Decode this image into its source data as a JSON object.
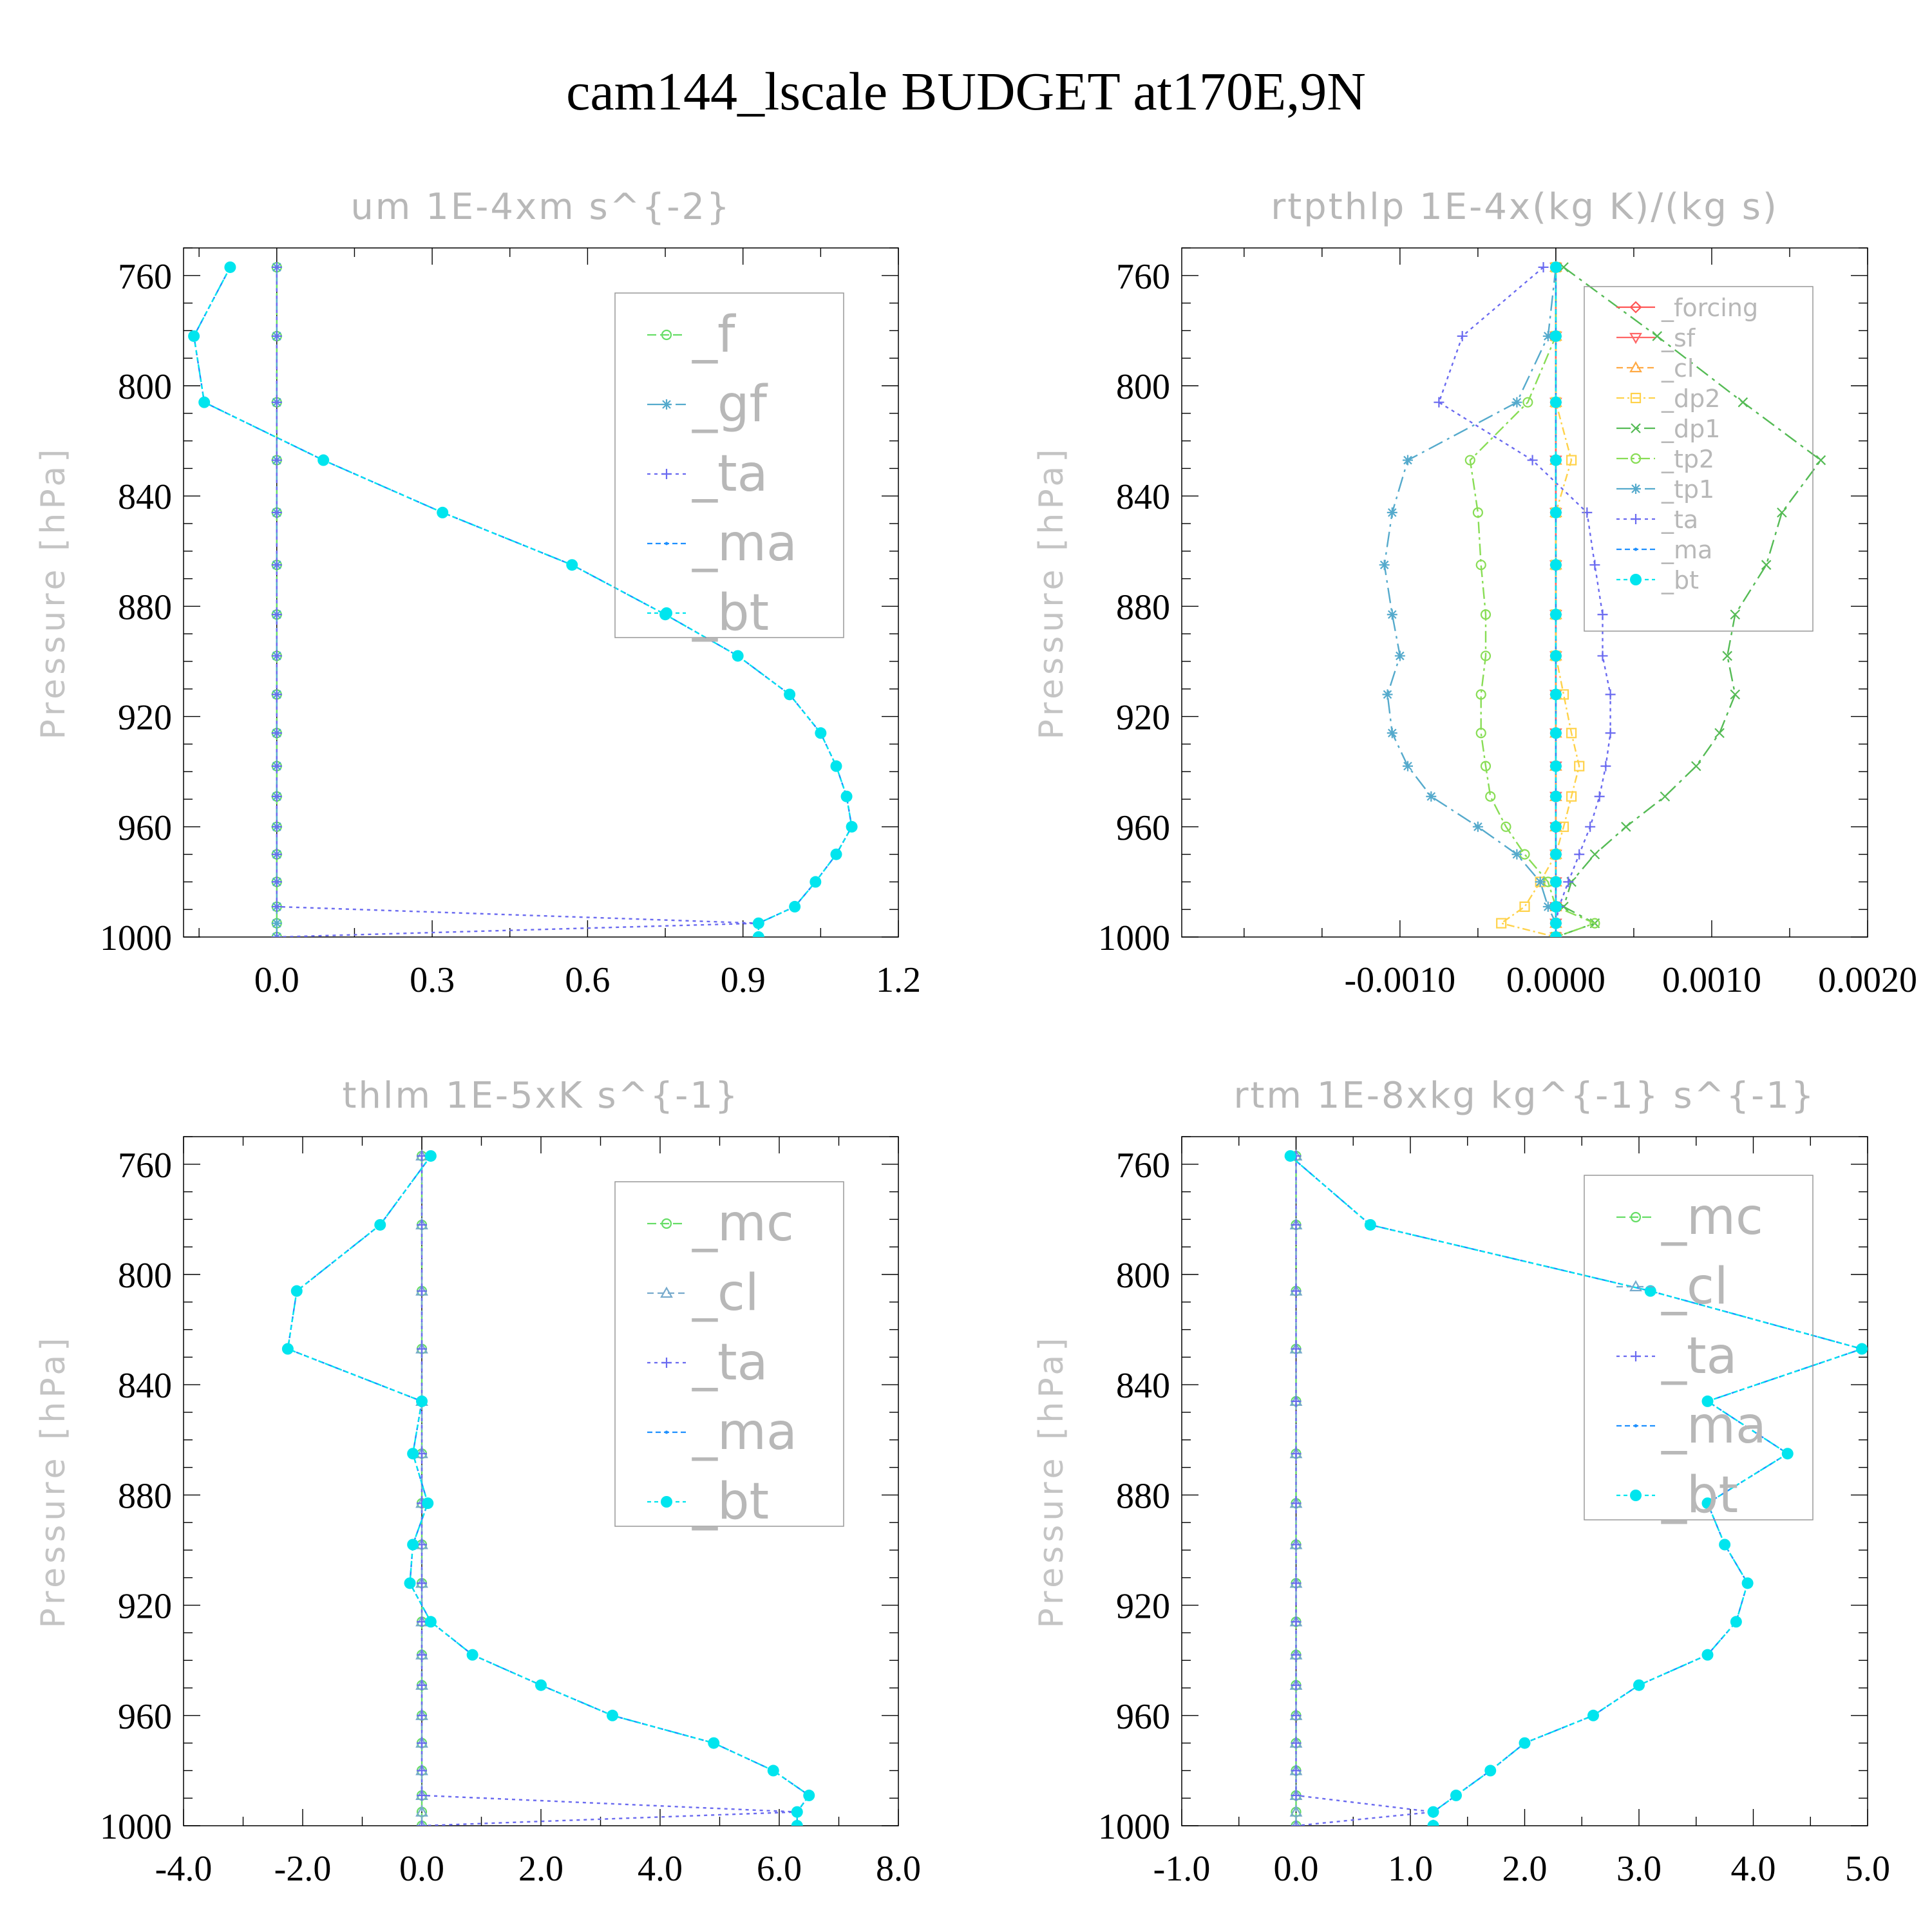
{
  "figure": {
    "title": "cam144_lscale  BUDGET at170E,9N"
  },
  "colors": {
    "_f": "#66dd66",
    "_gf": "#55aacc",
    "_ta": "#6a6af0",
    "_ma": "#1e90ff",
    "_bt": "#00e5ee",
    "_forcing": "#ff5555",
    "_sf": "#ff6666",
    "_cl": "#ffaa44",
    "_dp2": "#ffd24a",
    "_dp1": "#55bb55",
    "_tp2": "#88dd55",
    "_tp1": "#55aacc",
    "_mc": "#66dd66",
    "_cl_gray": "#77aacc"
  },
  "chart_data": [
    {
      "type": "line",
      "title": "um   1E-4xm s^{-2}",
      "ylabel": "Pressure [hPa]",
      "xlim": [
        -0.18,
        1.2
      ],
      "ylim": [
        1000,
        750
      ],
      "xticks": [
        0.0,
        0.3,
        0.6,
        0.9,
        1.2
      ],
      "xtick_labels": [
        "0.0",
        "0.3",
        "0.6",
        "0.9",
        "1.2"
      ],
      "yticks": [
        760,
        800,
        840,
        880,
        920,
        960,
        1000
      ],
      "legend": [
        "_f",
        "_gf",
        "_ta",
        "_ma",
        "_bt"
      ],
      "legend_placement": "top-right",
      "y": [
        757,
        782,
        806,
        827,
        846,
        865,
        883,
        898,
        912,
        926,
        938,
        949,
        960,
        970,
        980,
        989,
        995,
        1000
      ],
      "series": [
        {
          "name": "_f",
          "values": [
            0,
            0,
            0,
            0,
            0,
            0,
            0,
            0,
            0,
            0,
            0,
            0,
            0,
            0,
            0,
            0,
            0,
            0
          ]
        },
        {
          "name": "_gf",
          "values": [
            0,
            0,
            0,
            0,
            0,
            0,
            0,
            0,
            0,
            0,
            0,
            0,
            0,
            0,
            0,
            0,
            0,
            0
          ]
        },
        {
          "name": "_ta",
          "values": [
            0,
            0,
            0,
            0,
            0,
            0,
            0,
            0,
            0,
            0,
            0,
            0,
            0,
            0,
            0,
            0,
            0.93,
            0
          ]
        },
        {
          "name": "_ma",
          "values": [
            -0.09,
            -0.16,
            -0.14,
            0.09,
            0.32,
            0.57,
            0.75,
            0.89,
            0.99,
            1.05,
            1.08,
            1.1,
            1.11,
            1.08,
            1.04,
            1.0,
            0.93,
            0.93
          ]
        },
        {
          "name": "_bt",
          "values": [
            -0.09,
            -0.16,
            -0.14,
            0.09,
            0.32,
            0.57,
            0.75,
            0.89,
            0.99,
            1.05,
            1.08,
            1.1,
            1.11,
            1.08,
            1.04,
            1.0,
            0.93,
            0.93
          ]
        }
      ]
    },
    {
      "type": "line",
      "title": "rtpthlp   1E-4x(kg K)/(kg s)",
      "ylabel": "Pressure [hPa]",
      "xlim": [
        -0.0024,
        0.002
      ],
      "ylim": [
        1000,
        750
      ],
      "xticks": [
        -0.001,
        0.0,
        0.001,
        0.002
      ],
      "xtick_labels": [
        "-0.0010",
        "0.0000",
        "0.0010",
        "0.0020"
      ],
      "yticks": [
        760,
        800,
        840,
        880,
        920,
        960,
        1000
      ],
      "legend": [
        "_forcing",
        "_sf",
        "_cl",
        "_dp2",
        "_dp1",
        "_tp2",
        "_tp1",
        "_ta",
        "_ma",
        "_bt"
      ],
      "legend_placement": "top-right",
      "y": [
        757,
        782,
        806,
        827,
        846,
        865,
        883,
        898,
        912,
        926,
        938,
        949,
        960,
        970,
        980,
        989,
        995,
        1000
      ],
      "series": [
        {
          "name": "_forcing",
          "values": [
            0,
            0,
            0,
            0,
            0,
            0,
            0,
            0,
            0,
            0,
            0,
            0,
            0,
            0,
            0,
            0,
            0,
            0
          ]
        },
        {
          "name": "_sf",
          "values": [
            0,
            0,
            0,
            0,
            0,
            0,
            0,
            0,
            0,
            0,
            0,
            0,
            0,
            0,
            0,
            0,
            0,
            0
          ]
        },
        {
          "name": "_cl",
          "values": [
            0,
            0,
            0,
            0,
            0,
            0,
            0,
            0,
            0,
            0,
            0,
            0,
            0,
            0,
            0,
            0,
            0,
            0
          ]
        },
        {
          "name": "_dp2",
          "values": [
            0,
            0,
            0,
            0.0001,
            0,
            0,
            0,
            0,
            5e-05,
            0.0001,
            0.00015,
            0.0001,
            5e-05,
            0,
            -0.0001,
            -0.0002,
            -0.00035,
            0
          ]
        },
        {
          "name": "_dp1",
          "values": [
            5e-05,
            0.00065,
            0.0012,
            0.0017,
            0.00145,
            0.00135,
            0.00115,
            0.0011,
            0.00115,
            0.00105,
            0.0009,
            0.0007,
            0.00045,
            0.00025,
            0.0001,
            5e-05,
            0.00025,
            0
          ]
        },
        {
          "name": "_tp2",
          "values": [
            0,
            0,
            -0.00018,
            -0.00055,
            -0.0005,
            -0.00048,
            -0.00045,
            -0.00045,
            -0.00048,
            -0.00048,
            -0.00045,
            -0.00042,
            -0.00032,
            -0.0002,
            -5e-05,
            0,
            0.00025,
            0
          ]
        },
        {
          "name": "_tp1",
          "values": [
            0,
            -5e-05,
            -0.00025,
            -0.00095,
            -0.00105,
            -0.0011,
            -0.00105,
            -0.001,
            -0.00108,
            -0.00105,
            -0.00095,
            -0.0008,
            -0.0005,
            -0.00025,
            -0.0001,
            -5e-05,
            0,
            0
          ]
        },
        {
          "name": "_ta",
          "values": [
            -8e-05,
            -0.0006,
            -0.00075,
            -0.00015,
            0.0002,
            0.00025,
            0.0003,
            0.0003,
            0.00035,
            0.00035,
            0.00032,
            0.00028,
            0.00022,
            0.00015,
            8e-05,
            2e-05,
            0,
            0
          ]
        },
        {
          "name": "_ma",
          "values": [
            0,
            0,
            0,
            0,
            0,
            0,
            0,
            0,
            0,
            0,
            0,
            0,
            0,
            0,
            0,
            0,
            0,
            0
          ]
        },
        {
          "name": "_bt",
          "values": [
            0,
            0,
            0,
            0,
            0,
            0,
            0,
            0,
            0,
            0,
            0,
            0,
            0,
            0,
            0,
            0,
            0,
            0
          ]
        }
      ]
    },
    {
      "type": "line",
      "title": "thlm   1E-5xK s^{-1}",
      "ylabel": "Pressure [hPa]",
      "xlim": [
        -4.0,
        8.0
      ],
      "ylim": [
        1000,
        750
      ],
      "xticks": [
        -4.0,
        -2.0,
        0.0,
        2.0,
        4.0,
        6.0,
        8.0
      ],
      "xtick_labels": [
        "-4.0",
        "-2.0",
        "0.0",
        "2.0",
        "4.0",
        "6.0",
        "8.0"
      ],
      "yticks": [
        760,
        800,
        840,
        880,
        920,
        960,
        1000
      ],
      "legend": [
        "_mc",
        "_cl",
        "_ta",
        "_ma",
        "_bt"
      ],
      "legend_placement": "top-right",
      "y": [
        757,
        782,
        806,
        827,
        846,
        865,
        883,
        898,
        912,
        926,
        938,
        949,
        960,
        970,
        980,
        989,
        995,
        1000
      ],
      "series": [
        {
          "name": "_mc",
          "values": [
            0,
            0,
            0,
            0,
            0,
            0,
            0,
            0,
            0,
            0,
            0,
            0,
            0,
            0,
            0,
            0,
            0,
            0
          ]
        },
        {
          "name": "_cl",
          "values": [
            0,
            0,
            0,
            0,
            0,
            0,
            0,
            0,
            0,
            0,
            0,
            0,
            0,
            0,
            0,
            0,
            0,
            0
          ]
        },
        {
          "name": "_ta",
          "values": [
            0,
            0,
            0,
            0,
            0,
            0,
            0,
            0,
            0,
            0,
            0,
            0,
            0,
            0,
            0,
            0,
            6.3,
            0
          ]
        },
        {
          "name": "_ma",
          "values": [
            0.15,
            -0.7,
            -2.1,
            -2.25,
            0.0,
            -0.15,
            0.1,
            -0.15,
            -0.2,
            0.15,
            0.85,
            2.0,
            3.2,
            4.9,
            5.9,
            6.5,
            6.3,
            6.3
          ]
        },
        {
          "name": "_bt",
          "values": [
            0.15,
            -0.7,
            -2.1,
            -2.25,
            0.0,
            -0.15,
            0.1,
            -0.15,
            -0.2,
            0.15,
            0.85,
            2.0,
            3.2,
            4.9,
            5.9,
            6.5,
            6.3,
            6.3
          ]
        }
      ]
    },
    {
      "type": "line",
      "title": "rtm   1E-8xkg kg^{-1} s^{-1}",
      "ylabel": "Pressure [hPa]",
      "xlim": [
        -1.0,
        5.0
      ],
      "ylim": [
        1000,
        750
      ],
      "xticks": [
        -1.0,
        0.0,
        1.0,
        2.0,
        3.0,
        4.0,
        5.0
      ],
      "xtick_labels": [
        "-1.0",
        "0.0",
        "1.0",
        "2.0",
        "3.0",
        "4.0",
        "5.0"
      ],
      "yticks": [
        760,
        800,
        840,
        880,
        920,
        960,
        1000
      ],
      "legend": [
        "_mc",
        "_cl",
        "_ta",
        "_ma",
        "_bt"
      ],
      "legend_placement": "top-right",
      "y": [
        757,
        782,
        806,
        827,
        846,
        865,
        883,
        898,
        912,
        926,
        938,
        949,
        960,
        970,
        980,
        989,
        995,
        1000
      ],
      "series": [
        {
          "name": "_mc",
          "values": [
            0,
            0,
            0,
            0,
            0,
            0,
            0,
            0,
            0,
            0,
            0,
            0,
            0,
            0,
            0,
            0,
            0,
            0
          ]
        },
        {
          "name": "_cl",
          "values": [
            0,
            0,
            0,
            0,
            0,
            0,
            0,
            0,
            0,
            0,
            0,
            0,
            0,
            0,
            0,
            0,
            0,
            0
          ]
        },
        {
          "name": "_ta",
          "values": [
            0,
            0,
            0,
            0,
            0,
            0,
            0,
            0,
            0,
            0,
            0,
            0,
            0,
            0,
            0,
            0,
            1.2,
            0
          ]
        },
        {
          "name": "_ma",
          "values": [
            -0.05,
            0.65,
            3.1,
            4.95,
            3.6,
            4.3,
            3.6,
            3.75,
            3.95,
            3.85,
            3.6,
            3.0,
            2.6,
            2.0,
            1.7,
            1.4,
            1.2,
            1.2
          ]
        },
        {
          "name": "_bt",
          "values": [
            -0.05,
            0.65,
            3.1,
            4.95,
            3.6,
            4.3,
            3.6,
            3.75,
            3.95,
            3.85,
            3.6,
            3.0,
            2.6,
            2.0,
            1.7,
            1.4,
            1.2,
            1.2
          ]
        }
      ]
    }
  ]
}
